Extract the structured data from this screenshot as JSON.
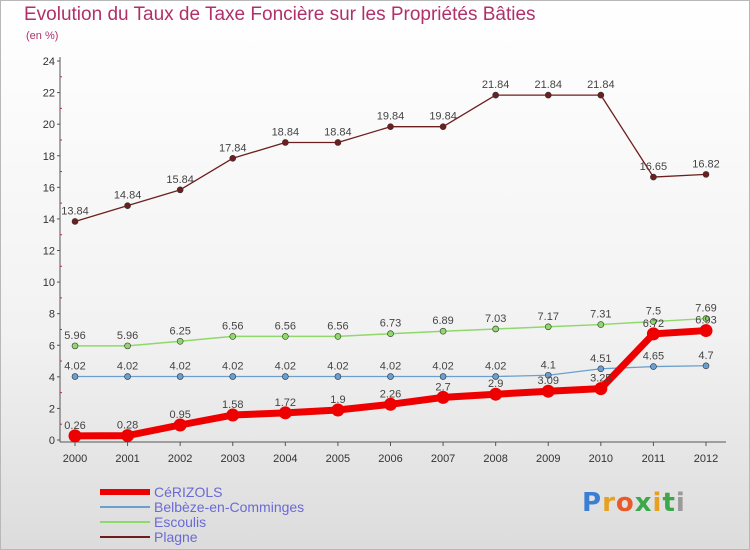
{
  "header": {
    "title": "Evolution du Taux de Taxe Foncière sur les Propriétés Bâties",
    "subtitle": "(en %)"
  },
  "logo": {
    "letters": [
      "P",
      "r",
      "o",
      "x",
      "i",
      "t",
      "i"
    ],
    "colors": [
      "#3b7fd4",
      "#e8a020",
      "#e85a2a",
      "#3ba84a",
      "#e8a020",
      "#3ba84a",
      "#9a9a9a"
    ]
  },
  "chart_data": {
    "type": "line",
    "x": [
      2000,
      2001,
      2002,
      2003,
      2004,
      2005,
      2006,
      2007,
      2008,
      2009,
      2010,
      2011,
      2012
    ],
    "ylim": [
      0,
      24
    ],
    "yticks": [
      0,
      2,
      4,
      6,
      8,
      10,
      12,
      14,
      16,
      18,
      20,
      22,
      24
    ],
    "grid": false,
    "legend_position": "bottom-left",
    "series": [
      {
        "name": "CéRIZOLS",
        "color": "#ee0000",
        "values": [
          0.26,
          0.28,
          0.95,
          1.58,
          1.72,
          1.9,
          2.26,
          2.7,
          2.9,
          3.09,
          3.25,
          6.72,
          6.93
        ],
        "labels": [
          "0.26",
          "0.28",
          "0.95",
          "1.58",
          "1.72",
          "1.9",
          "2.26",
          "2.7",
          "2.9",
          "3.09",
          "3.25",
          "6.72",
          "6.93"
        ]
      },
      {
        "name": "Belbèze-en-Comminges",
        "color": "#6b9fd0",
        "values": [
          4.02,
          4.02,
          4.02,
          4.02,
          4.02,
          4.02,
          4.02,
          4.02,
          4.02,
          4.1,
          4.51,
          4.65,
          4.7
        ],
        "labels": [
          "4.02",
          "4.02",
          "4.02",
          "4.02",
          "4.02",
          "4.02",
          "4.02",
          "4.02",
          "4.02",
          "4.1",
          "4.51",
          "4.65",
          "4.7"
        ]
      },
      {
        "name": "Escoulis",
        "color": "#8fd86a",
        "values": [
          5.96,
          5.96,
          6.25,
          6.56,
          6.56,
          6.56,
          6.73,
          6.89,
          7.03,
          7.17,
          7.31,
          7.5,
          7.69
        ],
        "labels": [
          "5.96",
          "5.96",
          "6.25",
          "6.56",
          "6.56",
          "6.56",
          "6.73",
          "6.89",
          "7.03",
          "7.17",
          "7.31",
          "7.5",
          "7.69"
        ]
      },
      {
        "name": "Plagne",
        "color": "#6e1e1e",
        "values": [
          13.84,
          14.84,
          15.84,
          17.84,
          18.84,
          18.84,
          19.84,
          19.84,
          21.84,
          21.84,
          21.84,
          16.65,
          16.82
        ],
        "labels": [
          "13.84",
          "14.84",
          "15.84",
          "17.84",
          "18.84",
          "18.84",
          "19.84",
          "19.84",
          "21.84",
          "21.84",
          "21.84",
          "16.65",
          "16.82"
        ]
      }
    ]
  }
}
